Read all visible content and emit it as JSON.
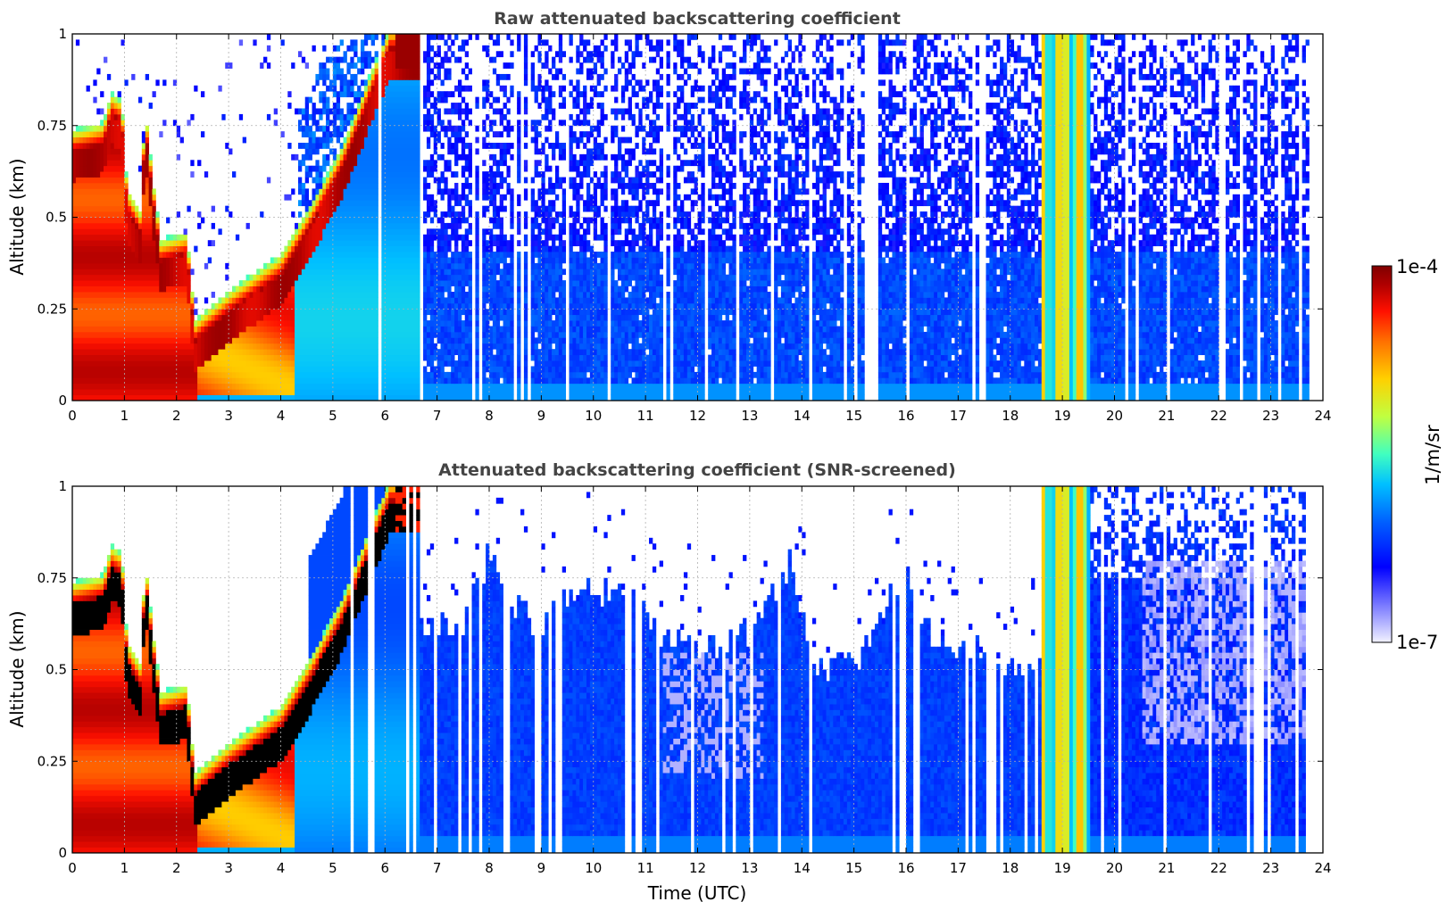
{
  "chart_data": [
    {
      "type": "heatmap",
      "title": "Raw attenuated backscattering coefficient",
      "xlabel": "",
      "ylabel": "Altitude (km)",
      "xlim": [
        0,
        24
      ],
      "ylim": [
        0,
        1
      ],
      "xticks": [
        "0",
        "1",
        "2",
        "3",
        "4",
        "5",
        "6",
        "7",
        "8",
        "9",
        "10",
        "11",
        "12",
        "13",
        "14",
        "15",
        "16",
        "17",
        "18",
        "19",
        "20",
        "21",
        "22",
        "23",
        "24"
      ],
      "yticks": [
        "0",
        "0.25",
        "0.5",
        "0.75",
        "1"
      ],
      "grid": true,
      "screened": false
    },
    {
      "type": "heatmap",
      "title": "Attenuated backscattering coefficient (SNR-screened)",
      "xlabel": "Time (UTC)",
      "ylabel": "Altitude (km)",
      "xlim": [
        0,
        24
      ],
      "ylim": [
        0,
        1
      ],
      "xticks": [
        "0",
        "1",
        "2",
        "3",
        "4",
        "5",
        "6",
        "7",
        "8",
        "9",
        "10",
        "11",
        "12",
        "13",
        "14",
        "15",
        "16",
        "17",
        "18",
        "19",
        "20",
        "21",
        "22",
        "23",
        "24"
      ],
      "yticks": [
        "0",
        "0.25",
        "0.5",
        "0.75",
        "1"
      ],
      "grid": true,
      "screened": true
    }
  ],
  "colorbar": {
    "label": "1/m/sr",
    "max_label": "1e-4",
    "min_label": "1e-7",
    "scale": "log",
    "colormap": [
      "#f2f2ff",
      "#9090ff",
      "#0000ff",
      "#0060ff",
      "#00c0ff",
      "#40ffc0",
      "#c0ff40",
      "#ffd000",
      "#ff7000",
      "#ff1000",
      "#b00000",
      "#800000"
    ]
  },
  "features": {
    "high_signal_column_hours": [
      18.6,
      19.5
    ],
    "data_end_hour": 23.75,
    "surface_layer_top_km": 0.05
  }
}
